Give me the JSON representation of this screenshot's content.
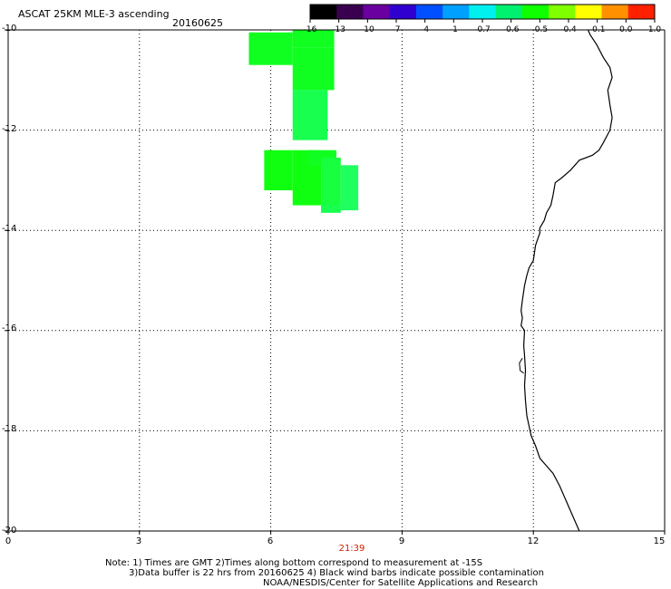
{
  "header": {
    "title": "ASCAT 25KM MLE-3 ascending",
    "date": "20160625"
  },
  "colorbar": {
    "ticks": [
      "-16",
      "-13",
      "-10",
      "-7",
      "-4",
      "-1",
      "-0.7",
      "-0.6",
      "-0.5",
      "-0.4",
      "-0.1",
      "0.0",
      "1.0"
    ],
    "colors": [
      "#000000",
      "#3a0050",
      "#6a00a0",
      "#3000d0",
      "#0050ff",
      "#00a0ff",
      "#00f0f0",
      "#00f070",
      "#10ff00",
      "#80ff00",
      "#ffff00",
      "#ff9000",
      "#ff2000"
    ]
  },
  "map": {
    "xlim": [
      0,
      15
    ],
    "ylim": [
      -20,
      -10
    ],
    "x_ticks": [
      "0",
      "3",
      "6",
      "9",
      "12",
      "15"
    ],
    "y_ticks": [
      "-10",
      "-12",
      "-14",
      "-16",
      "-18",
      "-20"
    ],
    "grid": "dotted",
    "pass_time": "21:39",
    "coastline_color": "#000000"
  },
  "cells": [
    {
      "lon0": 5.5,
      "lon1": 6.5,
      "lat0": -10.7,
      "lat1": -10.05,
      "value": -0.55,
      "color": "#10ff20"
    },
    {
      "lon0": 6.5,
      "lon1": 7.45,
      "lat0": -10.35,
      "lat1": -10.0,
      "value": -0.55,
      "color": "#10ff20"
    },
    {
      "lon0": 6.5,
      "lon1": 7.45,
      "lat0": -11.2,
      "lat1": -10.35,
      "value": -0.55,
      "color": "#10ff20"
    },
    {
      "lon0": 6.5,
      "lon1": 7.3,
      "lat0": -12.2,
      "lat1": -11.2,
      "value": -0.6,
      "color": "#18ff50"
    },
    {
      "lon0": 5.85,
      "lon1": 6.5,
      "lat0": -13.2,
      "lat1": -12.4,
      "value": -0.55,
      "color": "#10ff10"
    },
    {
      "lon0": 6.5,
      "lon1": 7.15,
      "lat0": -13.5,
      "lat1": -12.4,
      "value": -0.55,
      "color": "#10ff10"
    },
    {
      "lon0": 6.85,
      "lon1": 7.5,
      "lat0": -12.7,
      "lat1": -12.4,
      "value": -0.55,
      "color": "#10ff20"
    },
    {
      "lon0": 7.15,
      "lon1": 7.6,
      "lat0": -13.6,
      "lat1": -12.55,
      "value": -0.6,
      "color": "#18ff40"
    },
    {
      "lon0": 7.6,
      "lon1": 8.0,
      "lat0": -13.6,
      "lat1": -12.7,
      "value": -0.6,
      "color": "#20ff60"
    },
    {
      "lon0": 7.15,
      "lon1": 7.6,
      "lat0": -13.65,
      "lat1": -13.5,
      "value": -0.6,
      "color": "#18ff50"
    }
  ],
  "notes": [
    "Note: 1) Times are GMT 2)Times along bottom correspond to measurement at -15S",
    "3)Data buffer is 22 hrs from 20160625 4) Black wind barbs indicate possible contamination",
    "NOAA/NESDIS/Center for Satellite Applications and Research"
  ]
}
